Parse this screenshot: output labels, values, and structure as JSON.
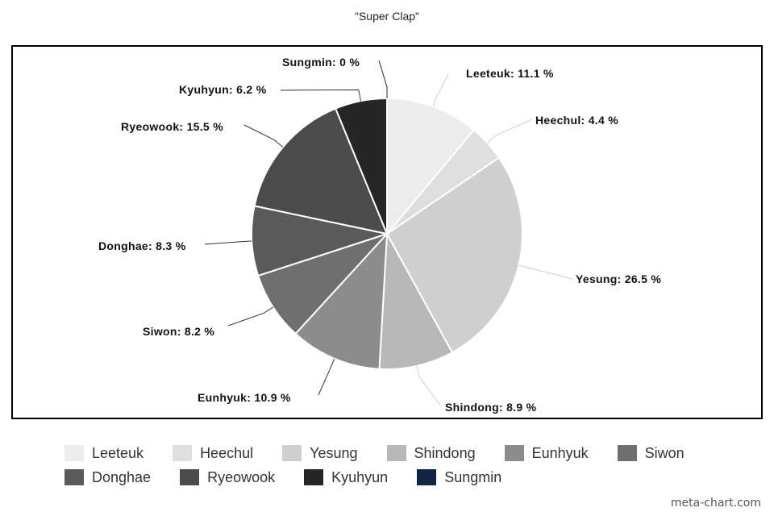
{
  "chart_data": {
    "type": "pie",
    "title": "\"Super Clap\"",
    "unit": "%",
    "legend_position": "bottom",
    "slices": [
      {
        "name": "Leeteuk",
        "value": 11.1,
        "color": "#ececec"
      },
      {
        "name": "Heechul",
        "value": 4.4,
        "color": "#dedede"
      },
      {
        "name": "Yesung",
        "value": 26.5,
        "color": "#cfcfcf"
      },
      {
        "name": "Shindong",
        "value": 8.9,
        "color": "#b8b8b8"
      },
      {
        "name": "Eunhyuk",
        "value": 10.9,
        "color": "#8c8c8c"
      },
      {
        "name": "Siwon",
        "value": 8.2,
        "color": "#6f6f6f"
      },
      {
        "name": "Donghae",
        "value": 8.3,
        "color": "#5a5a5a"
      },
      {
        "name": "Ryeowook",
        "value": 15.5,
        "color": "#4b4b4b"
      },
      {
        "name": "Kyuhyun",
        "value": 6.2,
        "color": "#262626"
      },
      {
        "name": "Sungmin",
        "value": 0,
        "color": "#102542"
      }
    ]
  },
  "watermark": "meta-chart.com"
}
